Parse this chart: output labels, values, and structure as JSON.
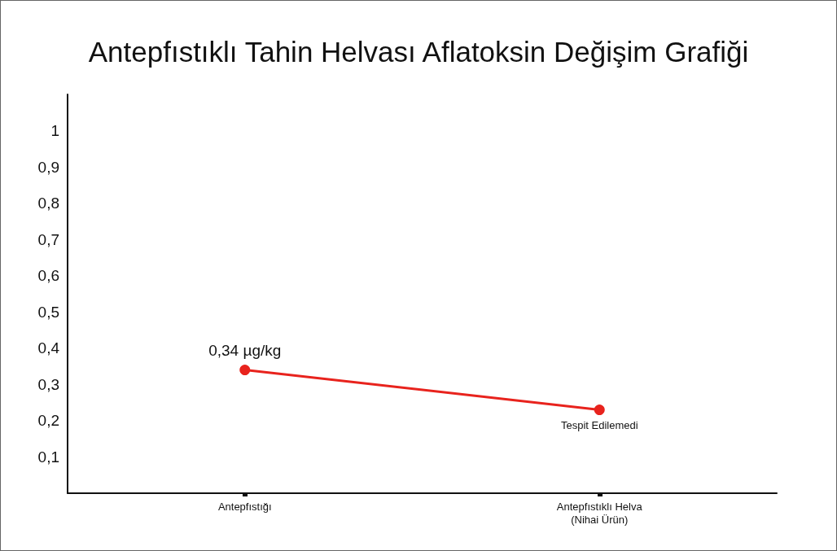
{
  "chart_data": {
    "type": "line",
    "title": "Antepfıstıklı Tahin Helvası Aflatoksin Değişim Grafiği",
    "categories": [
      "Antepfıstığı",
      "Antepfıstıklı Helva\n(Nihai Ürün)"
    ],
    "series": [
      {
        "color": "#e8231d",
        "values": [
          0.34,
          0.23
        ],
        "value_labels": [
          "0,34 µg/kg",
          "Tespit Edilemedi"
        ]
      }
    ],
    "ylim": [
      0,
      1.1
    ],
    "yticks": [
      {
        "value": 0.1,
        "label": "0,1"
      },
      {
        "value": 0.2,
        "label": "0,2"
      },
      {
        "value": 0.3,
        "label": "0,3"
      },
      {
        "value": 0.4,
        "label": "0,4"
      },
      {
        "value": 0.5,
        "label": "0,5"
      },
      {
        "value": 0.6,
        "label": "0,6"
      },
      {
        "value": 0.7,
        "label": "0,7"
      },
      {
        "value": 0.8,
        "label": "0,8"
      },
      {
        "value": 0.9,
        "label": "0,9"
      },
      1
    ],
    "grid": false,
    "marker": "circle",
    "line_style": "solid"
  }
}
